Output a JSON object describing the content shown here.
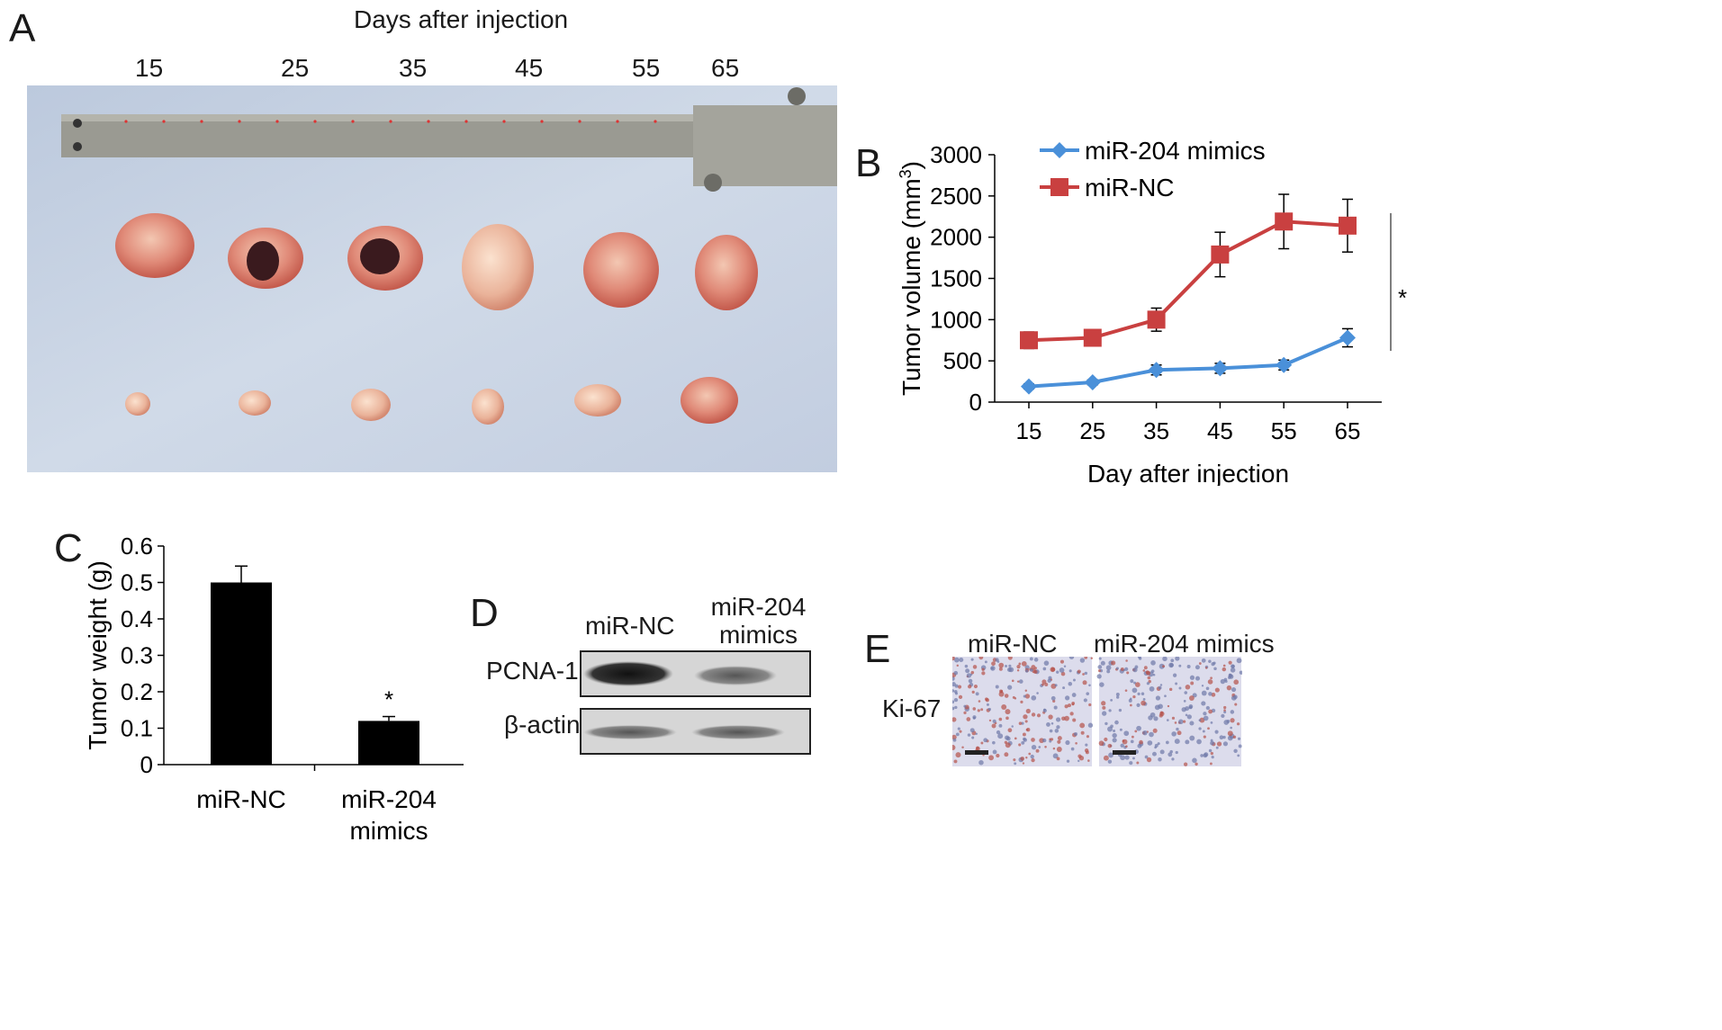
{
  "panels": {
    "A": {
      "letter": "A",
      "title": "Days after injection",
      "day_labels": [
        "15",
        "25",
        "35",
        "45",
        "55",
        "65"
      ]
    },
    "B": {
      "letter": "B"
    },
    "C": {
      "letter": "C"
    },
    "D": {
      "letter": "D",
      "col_labels": [
        "miR-NC",
        "miR-204 mimics"
      ],
      "row_labels": [
        "PCNA-1",
        "β-actin"
      ],
      "band_intensity": {
        "PCNA-1": [
          0.95,
          0.45
        ],
        "β-actin": [
          0.6,
          0.6
        ]
      }
    },
    "E": {
      "letter": "E",
      "col_labels": [
        "miR-NC",
        "miR-204 mimics"
      ],
      "row_label": "Ki-67"
    }
  },
  "chart_data": [
    {
      "type": "line",
      "panel": "B",
      "x": [
        15,
        25,
        35,
        45,
        55,
        65
      ],
      "xlabel": "Day after injection",
      "ylabel": "Tumor volume (mm",
      "ylabel_superscript": "3",
      "ylabel_suffix": ")",
      "ylim": [
        0,
        3000
      ],
      "yticks": [
        0,
        500,
        1000,
        1500,
        2000,
        2500,
        3000
      ],
      "legend_position": "top-left",
      "significance": "*",
      "series": [
        {
          "name": "miR-204 mimics",
          "color": "#4a90d9",
          "marker": "diamond",
          "values": [
            190,
            240,
            390,
            410,
            450,
            780
          ],
          "errors": [
            30,
            30,
            60,
            60,
            60,
            110
          ]
        },
        {
          "name": "miR-NC",
          "color": "#c94040",
          "marker": "square",
          "values": [
            750,
            780,
            1000,
            1790,
            2190,
            2140
          ],
          "errors": [
            100,
            100,
            140,
            270,
            330,
            320
          ]
        }
      ]
    },
    {
      "type": "bar",
      "panel": "C",
      "categories": [
        "miR-NC",
        "miR-204 mimics"
      ],
      "values": [
        0.5,
        0.12
      ],
      "errors": [
        0.045,
        0.012
      ],
      "ylabel": "Tumor weight (g)",
      "ylim": [
        0,
        0.6
      ],
      "yticks": [
        "0",
        "0.1",
        "0.2",
        "0.3",
        "0.4",
        "0.5",
        "0.6"
      ],
      "significance": [
        "",
        "*"
      ],
      "bar_color": "#000000"
    }
  ]
}
